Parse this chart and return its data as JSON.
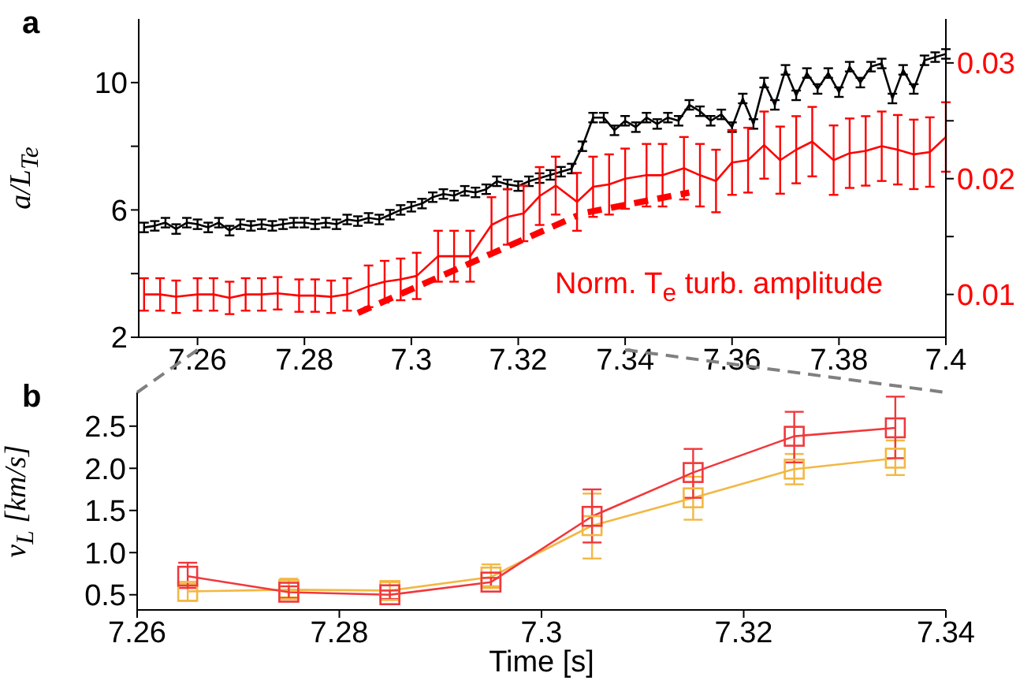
{
  "chart_data": [
    {
      "type": "line",
      "annotations": [
        "a"
      ],
      "ylabel": "a/L$_{Te}$",
      "marker": "none",
      "xlim": [
        7.249,
        7.4
      ],
      "xticks": [
        7.26,
        7.28,
        7.3,
        7.32,
        7.34,
        7.36,
        7.38,
        7.4
      ],
      "ylim": [
        2,
        12
      ],
      "yticks": [
        2,
        {
          "value": 4,
          "label": null
        },
        6,
        {
          "value": 8,
          "label": null
        },
        10
      ],
      "y2lim": [
        0.0063,
        0.0338
      ],
      "y2ticks": [
        0.01,
        {
          "value": 0.015,
          "label": null
        },
        0.02,
        {
          "value": 0.025,
          "label": null
        },
        0.03
      ],
      "series": [
        {
          "color": "#000000",
          "x": [
            7.25,
            7.252,
            7.254,
            7.256,
            7.258,
            7.26,
            7.262,
            7.264,
            7.266,
            7.268,
            7.27,
            7.272,
            7.274,
            7.276,
            7.278,
            7.28,
            7.282,
            7.284,
            7.286,
            7.288,
            7.29,
            7.292,
            7.294,
            7.296,
            7.298,
            7.3,
            7.302,
            7.304,
            7.306,
            7.308,
            7.31,
            7.312,
            7.314,
            7.316,
            7.318,
            7.32,
            7.322,
            7.324,
            7.326,
            7.328,
            7.33,
            7.332,
            7.334,
            7.336,
            7.338,
            7.34,
            7.342,
            7.344,
            7.346,
            7.348,
            7.35,
            7.352,
            7.354,
            7.356,
            7.358,
            7.36,
            7.362,
            7.364,
            7.366,
            7.368,
            7.37,
            7.372,
            7.374,
            7.376,
            7.378,
            7.38,
            7.382,
            7.384,
            7.386,
            7.388,
            7.39,
            7.392,
            7.394,
            7.396,
            7.398,
            7.4
          ],
          "values": [
            5.45,
            5.5,
            5.6,
            5.4,
            5.6,
            5.55,
            5.45,
            5.6,
            5.35,
            5.55,
            5.5,
            5.55,
            5.5,
            5.55,
            5.6,
            5.6,
            5.55,
            5.6,
            5.55,
            5.7,
            5.65,
            5.75,
            5.7,
            5.85,
            6.0,
            6.1,
            6.2,
            6.4,
            6.5,
            6.45,
            6.6,
            6.55,
            6.65,
            6.9,
            6.8,
            6.75,
            6.9,
            7.0,
            7.1,
            7.2,
            7.3,
            8.0,
            8.9,
            8.9,
            8.5,
            8.8,
            8.6,
            8.9,
            8.7,
            8.9,
            8.8,
            9.3,
            9.1,
            8.8,
            9.0,
            8.6,
            9.5,
            8.7,
            10.0,
            9.3,
            10.4,
            9.6,
            10.3,
            9.8,
            10.3,
            9.7,
            10.5,
            10.0,
            10.5,
            10.6,
            9.5,
            10.4,
            9.8,
            10.7,
            10.8,
            10.9
          ],
          "errors": [
            0.15,
            0.15,
            0.15,
            0.15,
            0.15,
            0.15,
            0.15,
            0.15,
            0.15,
            0.15,
            0.15,
            0.15,
            0.15,
            0.15,
            0.15,
            0.15,
            0.15,
            0.15,
            0.15,
            0.15,
            0.15,
            0.15,
            0.15,
            0.15,
            0.15,
            0.15,
            0.15,
            0.15,
            0.15,
            0.15,
            0.15,
            0.15,
            0.15,
            0.15,
            0.15,
            0.15,
            0.15,
            0.15,
            0.15,
            0.15,
            0.15,
            0.15,
            0.15,
            0.15,
            0.15,
            0.15,
            0.15,
            0.15,
            0.15,
            0.15,
            0.15,
            0.15,
            0.15,
            0.15,
            0.15,
            0.15,
            0.15,
            0.15,
            0.15,
            0.15,
            0.15,
            0.15,
            0.15,
            0.15,
            0.15,
            0.15,
            0.15,
            0.15,
            0.15,
            0.15,
            0.15,
            0.15,
            0.15,
            0.15,
            0.15,
            0.15
          ]
        },
        {
          "name": "Norm. T$_{e}$ turb. amplitude",
          "color": "#ff0000",
          "axis": "y2",
          "x": [
            7.25,
            7.253,
            7.256,
            7.26,
            7.263,
            7.266,
            7.269,
            7.272,
            7.275,
            7.279,
            7.282,
            7.285,
            7.288,
            7.292,
            7.295,
            7.298,
            7.301,
            7.305,
            7.308,
            7.311,
            7.315,
            7.318,
            7.321,
            7.324,
            7.327,
            7.331,
            7.334,
            7.337,
            7.34,
            7.344,
            7.347,
            7.351,
            7.354,
            7.357,
            7.36,
            7.363,
            7.366,
            7.369,
            7.372,
            7.375,
            7.379,
            7.382,
            7.385,
            7.388,
            7.391,
            7.394,
            7.397,
            7.4
          ],
          "values": [
            0.01,
            0.01,
            0.0098,
            0.01,
            0.01,
            0.0097,
            0.01,
            0.01,
            0.0101,
            0.0099,
            0.0099,
            0.0098,
            0.01,
            0.0107,
            0.0111,
            0.0113,
            0.0116,
            0.0133,
            0.0133,
            0.0133,
            0.016,
            0.0167,
            0.017,
            0.0185,
            0.0194,
            0.018,
            0.0193,
            0.0195,
            0.02,
            0.0203,
            0.0203,
            0.0209,
            0.0203,
            0.0198,
            0.0214,
            0.0216,
            0.0229,
            0.0216,
            0.0225,
            0.0232,
            0.0216,
            0.0222,
            0.0224,
            0.0228,
            0.0225,
            0.0221,
            0.0223,
            0.0236
          ],
          "errors": [
            0.0014,
            0.0014,
            0.0014,
            0.0014,
            0.0014,
            0.0014,
            0.0014,
            0.0014,
            0.0014,
            0.0014,
            0.0014,
            0.0014,
            0.0014,
            0.0018,
            0.0018,
            0.0018,
            0.002,
            0.0022,
            0.0022,
            0.0022,
            0.0024,
            0.0024,
            0.0024,
            0.0025,
            0.0025,
            0.0025,
            0.0026,
            0.0026,
            0.0026,
            0.0027,
            0.0027,
            0.0027,
            0.0027,
            0.0027,
            0.0028,
            0.0028,
            0.0029,
            0.0029,
            0.0029,
            0.003,
            0.003,
            0.003,
            0.003,
            0.003,
            0.003,
            0.003,
            0.003,
            0.003
          ]
        },
        {
          "color": "#ff0000",
          "axis": "y2",
          "line_style": "dashed",
          "x": [
            7.29,
            7.331
          ],
          "values": [
            0.0084,
            0.0168
          ]
        },
        {
          "color": "#ff0000",
          "axis": "y2",
          "line_style": "dashed",
          "x": [
            7.333,
            7.352
          ],
          "values": [
            0.0171,
            0.0188
          ]
        }
      ]
    },
    {
      "type": "line",
      "annotations": [
        "b"
      ],
      "xlabel": "Time [s]",
      "ylabel": "v$_{L}$ [km/s]",
      "marker": "square",
      "xlim": [
        7.26,
        7.34
      ],
      "xticks": [
        7.26,
        7.28,
        7.3,
        7.32,
        7.34
      ],
      "ylim": [
        0.32,
        2.9
      ],
      "yticks": [
        0.5,
        {
          "value": 1,
          "label": "1.0"
        },
        1.5,
        {
          "value": 2,
          "label": "2.0"
        },
        2.5
      ],
      "x": [
        7.265,
        7.275,
        7.285,
        7.295,
        7.305,
        7.315,
        7.325,
        7.335
      ],
      "series": [
        {
          "color": "#f2b844",
          "values": [
            0.54,
            0.56,
            0.55,
            0.71,
            1.32,
            1.65,
            1.99,
            2.12
          ],
          "errors": [
            [
              0.43,
              0.63
            ],
            [
              0.47,
              0.69
            ],
            [
              0.45,
              0.65
            ],
            [
              0.58,
              0.86
            ],
            [
              0.93,
              1.7
            ],
            [
              1.39,
              1.9
            ],
            [
              1.81,
              2.17
            ],
            [
              1.92,
              2.33
            ]
          ]
        },
        {
          "color": "#f0383c",
          "values": [
            0.72,
            0.53,
            0.5,
            0.65,
            1.43,
            1.95,
            2.38,
            2.48
          ],
          "errors": [
            [
              0.58,
              0.88
            ],
            [
              0.46,
              0.6
            ],
            [
              0.45,
              0.55
            ],
            [
              0.6,
              0.7
            ],
            [
              1.12,
              1.75
            ],
            [
              1.65,
              2.23
            ],
            [
              2.07,
              2.67
            ],
            [
              2.12,
              2.85
            ]
          ]
        }
      ]
    }
  ]
}
